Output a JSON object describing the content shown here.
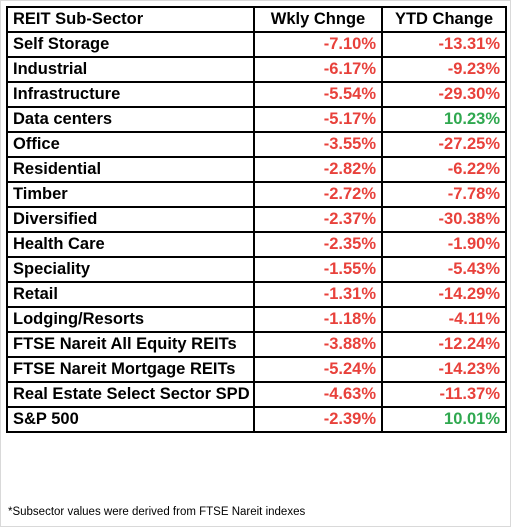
{
  "table": {
    "headers": [
      "REIT Sub-Sector",
      "Wkly Chnge",
      "YTD Change"
    ],
    "rows": [
      {
        "sector": "Self Storage",
        "weekly": "-7.10%",
        "ytd": "-13.31%"
      },
      {
        "sector": "Industrial",
        "weekly": "-6.17%",
        "ytd": "-9.23%"
      },
      {
        "sector": "Infrastructure",
        "weekly": "-5.54%",
        "ytd": "-29.30%"
      },
      {
        "sector": "Data centers",
        "weekly": "-5.17%",
        "ytd": "10.23%"
      },
      {
        "sector": "Office",
        "weekly": "-3.55%",
        "ytd": "-27.25%"
      },
      {
        "sector": "Residential",
        "weekly": "-2.82%",
        "ytd": "-6.22%"
      },
      {
        "sector": "Timber",
        "weekly": "-2.72%",
        "ytd": "-7.78%"
      },
      {
        "sector": "Diversified",
        "weekly": "-2.37%",
        "ytd": "-30.38%"
      },
      {
        "sector": "Health Care",
        "weekly": "-2.35%",
        "ytd": "-1.90%"
      },
      {
        "sector": "Speciality",
        "weekly": "-1.55%",
        "ytd": "-5.43%"
      },
      {
        "sector": "Retail",
        "weekly": "-1.31%",
        "ytd": "-14.29%"
      },
      {
        "sector": "Lodging/Resorts",
        "weekly": "-1.18%",
        "ytd": "-4.11%"
      },
      {
        "sector": "FTSE Nareit All Equity REITs",
        "weekly": "-3.88%",
        "ytd": "-12.24%"
      },
      {
        "sector": "FTSE Nareit Mortgage REITs",
        "weekly": "-5.24%",
        "ytd": "-14.23%"
      },
      {
        "sector": "Real Estate Select Sector SPD",
        "weekly": "-4.63%",
        "ytd": "-11.37%"
      },
      {
        "sector": "S&P 500",
        "weekly": "-2.39%",
        "ytd": "10.01%"
      }
    ]
  },
  "footnote": "*Subsector values were derived from FTSE Nareit indexes",
  "colors": {
    "negative": "#e8413b",
    "positive": "#2fa84f"
  }
}
